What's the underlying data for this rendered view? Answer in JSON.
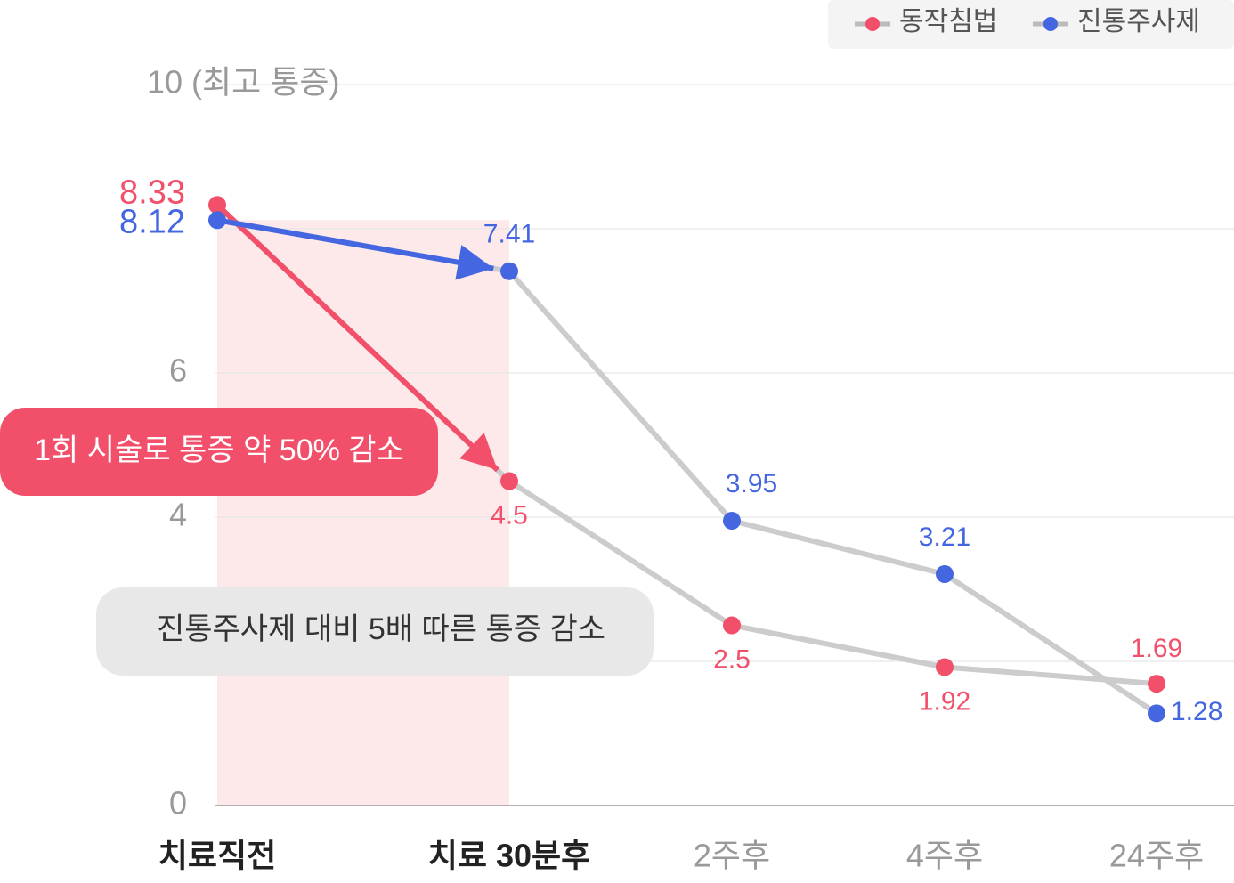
{
  "chart_data": {
    "type": "line",
    "categories": [
      "치료직전",
      "치료 30분후",
      "2주후",
      "4주후",
      "24주후"
    ],
    "series": [
      {
        "name": "동작침법",
        "color": "#f2506a",
        "values": [
          8.33,
          4.5,
          2.5,
          1.92,
          1.69
        ]
      },
      {
        "name": "진통주사제",
        "color": "#4466e0",
        "values": [
          8.12,
          7.41,
          3.95,
          3.21,
          1.28
        ]
      }
    ],
    "ylim": [
      0,
      10
    ],
    "yticks": [
      0,
      {
        "value": 2,
        "label": null
      },
      4,
      6,
      {
        "value": 8,
        "label": null
      },
      {
        "value": 10,
        "label": "10 (최고 통증)"
      }
    ],
    "grid": true,
    "legend": "top-right",
    "annotations": [
      "1회 시술로 통증 약 50% 감소",
      "진통주사제 대비 5배 따른 통증 감소"
    ]
  }
}
